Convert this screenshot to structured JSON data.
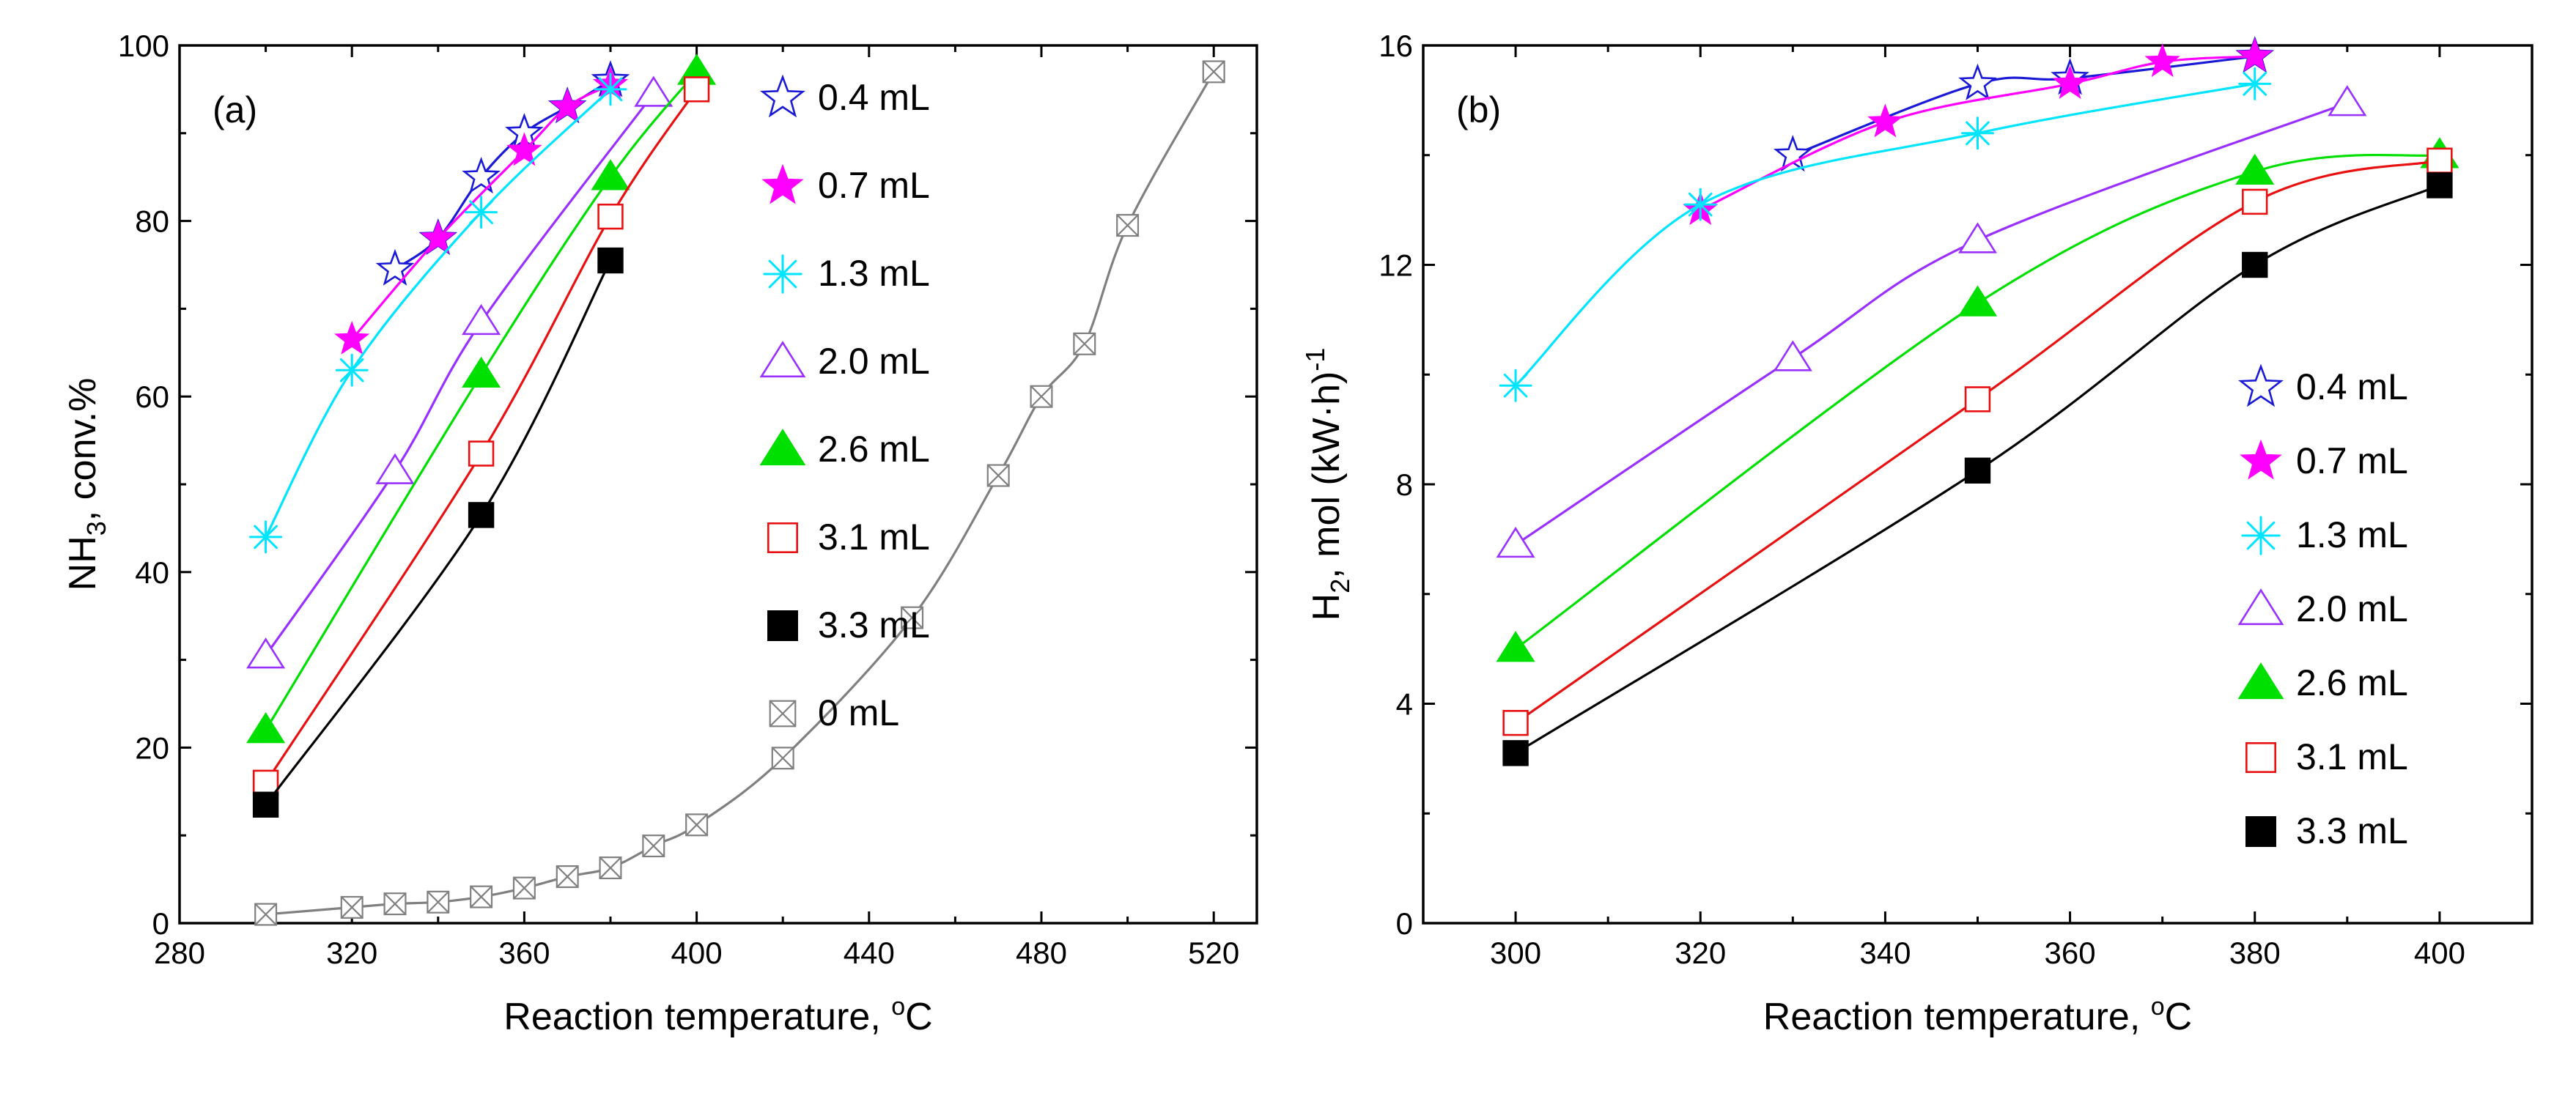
{
  "chart_data": [
    {
      "type": "line",
      "panel_label": "(a)",
      "xlabel": "Reaction temperature,",
      "xunit_sup": "o",
      "xunit": "C",
      "ylabel_main": "NH",
      "ylabel_sub": "3",
      "ylabel_rest": ", conv.%",
      "xlim": [
        280,
        530
      ],
      "ylim": [
        0,
        100
      ],
      "xticks": [
        280,
        320,
        360,
        400,
        440,
        480,
        520
      ],
      "yticks": [
        0,
        20,
        40,
        60,
        80,
        100
      ],
      "legend_position": "top-center",
      "series": [
        {
          "name": "0.4 mL",
          "color": "#1a1ad6",
          "marker": "star-open",
          "x": [
            330,
            340,
            350,
            360,
            370,
            380
          ],
          "y": [
            74.5,
            78,
            85,
            90,
            93,
            96
          ]
        },
        {
          "name": "0.7 mL",
          "color": "#ff00ff",
          "marker": "star-filled",
          "x": [
            320,
            340,
            360,
            370,
            380
          ],
          "y": [
            66.5,
            78,
            88,
            93,
            95.5
          ]
        },
        {
          "name": "1.3 mL",
          "color": "#00e5ff",
          "marker": "asterisk",
          "x": [
            300,
            320,
            350,
            380
          ],
          "y": [
            44,
            63,
            81,
            95
          ]
        },
        {
          "name": "2.0 mL",
          "color": "#9a30ff",
          "marker": "triangle-open",
          "x": [
            300,
            330,
            350,
            390
          ],
          "y": [
            30.5,
            51.5,
            68.5,
            94.5
          ]
        },
        {
          "name": "2.6 mL",
          "color": "#00e000",
          "marker": "triangle-filled",
          "x": [
            300,
            350,
            380,
            400
          ],
          "y": [
            22,
            62.5,
            85,
            97
          ]
        },
        {
          "name": "3.1 mL",
          "color": "#e81010",
          "marker": "square-open",
          "x": [
            300,
            350,
            380,
            400
          ],
          "y": [
            16,
            53.5,
            80.5,
            95
          ]
        },
        {
          "name": "3.3 mL",
          "color": "#000000",
          "marker": "square-filled",
          "x": [
            300,
            350,
            380
          ],
          "y": [
            13.5,
            46.5,
            75.5
          ]
        },
        {
          "name": "0 mL",
          "color": "#808080",
          "marker": "square-x",
          "x": [
            300,
            320,
            330,
            340,
            350,
            360,
            370,
            380,
            390,
            400,
            420,
            450,
            470,
            480,
            490,
            500,
            520
          ],
          "y": [
            1,
            1.8,
            2.2,
            2.4,
            3,
            4,
            5.3,
            6.3,
            8.8,
            11.2,
            18.8,
            34.8,
            51,
            60,
            66,
            79.5,
            97
          ]
        }
      ]
    },
    {
      "type": "line",
      "panel_label": "(b)",
      "xlabel": "Reaction temperature,",
      "xunit_sup": "o",
      "xunit": "C",
      "ylabel_main": "H",
      "ylabel_sub": "2",
      "ylabel_rest": ", mol (kW·h)",
      "ylabel_sup": "-1",
      "xlim": [
        290,
        410
      ],
      "ylim": [
        0,
        16
      ],
      "xticks": [
        300,
        320,
        340,
        360,
        380,
        400
      ],
      "yticks": [
        0,
        4,
        8,
        12,
        16
      ],
      "legend_position": "bottom-right",
      "series": [
        {
          "name": "0.4 mL",
          "color": "#1a1ad6",
          "marker": "star-open",
          "x": [
            330,
            350,
            360,
            380
          ],
          "y": [
            14,
            15.3,
            15.4,
            15.8
          ]
        },
        {
          "name": "0.7 mL",
          "color": "#ff00ff",
          "marker": "star-filled",
          "x": [
            320,
            340,
            360,
            370,
            380
          ],
          "y": [
            13,
            14.6,
            15.3,
            15.7,
            15.8
          ]
        },
        {
          "name": "1.3 mL",
          "color": "#00e5ff",
          "marker": "asterisk",
          "x": [
            300,
            320,
            350,
            380
          ],
          "y": [
            9.8,
            13.1,
            14.4,
            15.3
          ]
        },
        {
          "name": "2.0 mL",
          "color": "#9a30ff",
          "marker": "triangle-open",
          "x": [
            300,
            330,
            350,
            390
          ],
          "y": [
            6.9,
            10.3,
            12.45,
            14.95
          ]
        },
        {
          "name": "2.6 mL",
          "color": "#00e000",
          "marker": "triangle-filled",
          "x": [
            300,
            350,
            380,
            400
          ],
          "y": [
            5,
            11.3,
            13.7,
            14
          ]
        },
        {
          "name": "3.1 mL",
          "color": "#e81010",
          "marker": "square-open",
          "x": [
            300,
            350,
            380,
            400
          ],
          "y": [
            3.65,
            9.55,
            13.15,
            13.9
          ]
        },
        {
          "name": "3.3 mL",
          "color": "#000000",
          "marker": "square-filled",
          "x": [
            300,
            350,
            380,
            400
          ],
          "y": [
            3.1,
            8.25,
            12,
            13.45
          ]
        }
      ]
    }
  ]
}
